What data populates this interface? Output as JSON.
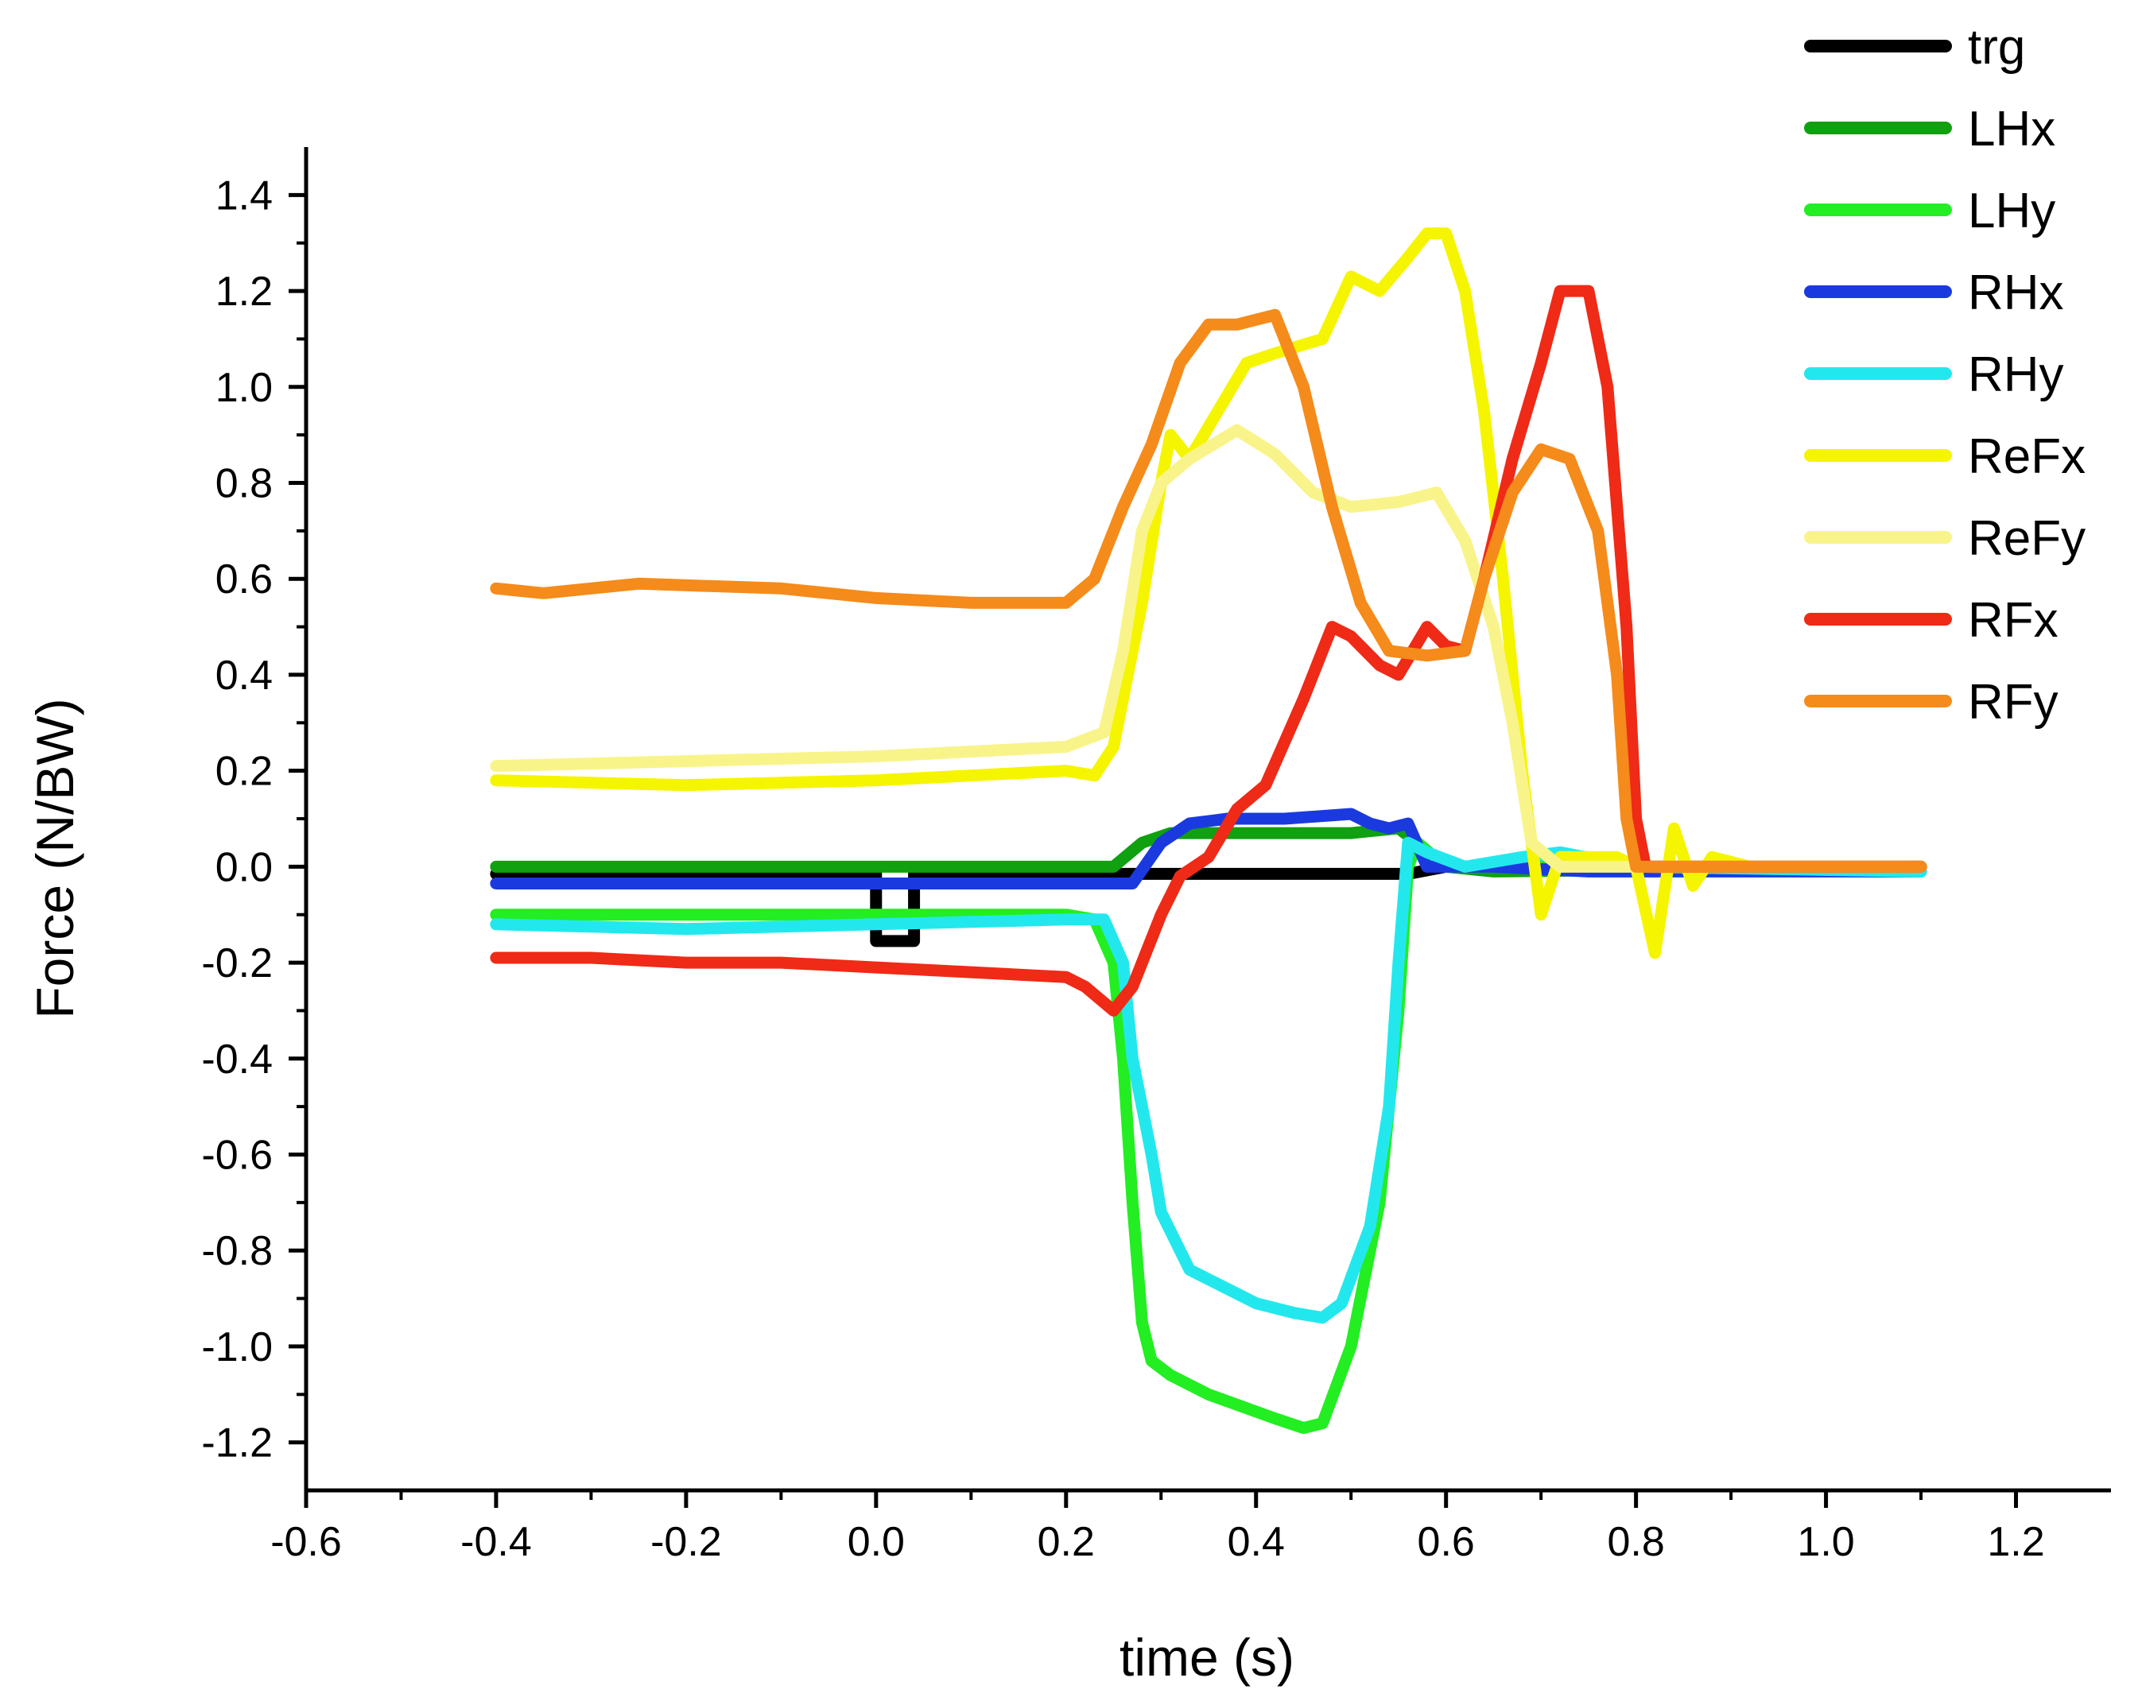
{
  "chart_data": {
    "type": "line",
    "title": "",
    "xlabel": "time (s)",
    "ylabel": "Force (N/BW)",
    "xlim": [
      -0.6,
      1.3
    ],
    "ylim": [
      -1.3,
      1.5
    ],
    "x_ticks": [
      -0.6,
      -0.4,
      -0.2,
      0.0,
      0.2,
      0.4,
      0.6,
      0.8,
      1.0,
      1.2
    ],
    "x_tick_labels": [
      "-0.6",
      "-0.4",
      "-0.2",
      "0.0",
      "0.2",
      "0.4",
      "0.6",
      "0.8",
      "1.0",
      "1.2"
    ],
    "y_ticks": [
      -1.2,
      -1.0,
      -0.8,
      -0.6,
      -0.4,
      -0.2,
      0.0,
      0.2,
      0.4,
      0.6,
      0.8,
      1.0,
      1.2,
      1.4
    ],
    "y_tick_labels": [
      "-1.2",
      "-1.0",
      "-0.8",
      "-0.6",
      "-0.4",
      "-0.2",
      "0.0",
      "0.2",
      "0.4",
      "0.6",
      "0.8",
      "1.0",
      "1.2",
      "1.4"
    ],
    "grid": false,
    "legend_position": "top-right",
    "series": [
      {
        "name": "trg",
        "color": "#000000",
        "points": [
          [
            -0.4,
            -0.015
          ],
          [
            0.0,
            -0.015
          ],
          [
            0.0,
            -0.155
          ],
          [
            0.04,
            -0.155
          ],
          [
            0.04,
            -0.015
          ],
          [
            0.56,
            -0.015
          ],
          [
            0.6,
            0.0
          ],
          [
            1.1,
            0.0
          ]
        ]
      },
      {
        "name": "LHx",
        "color": "#10a010",
        "points": [
          [
            -0.4,
            0.0
          ],
          [
            0.25,
            0.0
          ],
          [
            0.28,
            0.05
          ],
          [
            0.31,
            0.07
          ],
          [
            0.4,
            0.07
          ],
          [
            0.5,
            0.07
          ],
          [
            0.55,
            0.08
          ],
          [
            0.57,
            0.05
          ],
          [
            0.6,
            0.0
          ],
          [
            0.65,
            -0.01
          ],
          [
            1.1,
            0.0
          ]
        ]
      },
      {
        "name": "LHy",
        "color": "#22ee22",
        "points": [
          [
            -0.4,
            -0.1
          ],
          [
            0.0,
            -0.1
          ],
          [
            0.2,
            -0.1
          ],
          [
            0.23,
            -0.11
          ],
          [
            0.25,
            -0.2
          ],
          [
            0.26,
            -0.4
          ],
          [
            0.27,
            -0.7
          ],
          [
            0.28,
            -0.95
          ],
          [
            0.29,
            -1.03
          ],
          [
            0.31,
            -1.06
          ],
          [
            0.35,
            -1.1
          ],
          [
            0.42,
            -1.15
          ],
          [
            0.45,
            -1.17
          ],
          [
            0.47,
            -1.16
          ],
          [
            0.5,
            -1.0
          ],
          [
            0.53,
            -0.7
          ],
          [
            0.55,
            -0.3
          ],
          [
            0.56,
            0.0
          ],
          [
            0.57,
            0.05
          ],
          [
            0.6,
            0.0
          ],
          [
            0.7,
            0.0
          ],
          [
            1.1,
            0.0
          ]
        ]
      },
      {
        "name": "RHx",
        "color": "#1a3adf",
        "points": [
          [
            -0.4,
            -0.035
          ],
          [
            0.27,
            -0.035
          ],
          [
            0.3,
            0.05
          ],
          [
            0.33,
            0.09
          ],
          [
            0.37,
            0.1
          ],
          [
            0.43,
            0.1
          ],
          [
            0.5,
            0.11
          ],
          [
            0.52,
            0.09
          ],
          [
            0.54,
            0.08
          ],
          [
            0.56,
            0.09
          ],
          [
            0.58,
            0.0
          ],
          [
            0.65,
            0.0
          ],
          [
            0.75,
            -0.01
          ],
          [
            1.1,
            -0.01
          ]
        ]
      },
      {
        "name": "RHy",
        "color": "#22e8ee",
        "points": [
          [
            -0.4,
            -0.12
          ],
          [
            -0.2,
            -0.13
          ],
          [
            0.0,
            -0.12
          ],
          [
            0.2,
            -0.11
          ],
          [
            0.24,
            -0.11
          ],
          [
            0.26,
            -0.2
          ],
          [
            0.27,
            -0.4
          ],
          [
            0.29,
            -0.6
          ],
          [
            0.3,
            -0.72
          ],
          [
            0.33,
            -0.84
          ],
          [
            0.37,
            -0.88
          ],
          [
            0.4,
            -0.91
          ],
          [
            0.44,
            -0.93
          ],
          [
            0.47,
            -0.94
          ],
          [
            0.49,
            -0.91
          ],
          [
            0.52,
            -0.75
          ],
          [
            0.54,
            -0.5
          ],
          [
            0.55,
            -0.2
          ],
          [
            0.56,
            0.05
          ],
          [
            0.58,
            0.03
          ],
          [
            0.62,
            0.0
          ],
          [
            0.68,
            0.02
          ],
          [
            0.72,
            0.03
          ],
          [
            0.8,
            0.0
          ],
          [
            1.1,
            -0.01
          ]
        ]
      },
      {
        "name": "ReFx",
        "color": "#f5f500",
        "points": [
          [
            -0.4,
            0.18
          ],
          [
            -0.2,
            0.17
          ],
          [
            0.0,
            0.18
          ],
          [
            0.2,
            0.2
          ],
          [
            0.23,
            0.19
          ],
          [
            0.25,
            0.25
          ],
          [
            0.28,
            0.55
          ],
          [
            0.3,
            0.8
          ],
          [
            0.31,
            0.9
          ],
          [
            0.33,
            0.85
          ],
          [
            0.36,
            0.95
          ],
          [
            0.39,
            1.05
          ],
          [
            0.42,
            1.07
          ],
          [
            0.47,
            1.1
          ],
          [
            0.5,
            1.23
          ],
          [
            0.53,
            1.2
          ],
          [
            0.56,
            1.27
          ],
          [
            0.58,
            1.32
          ],
          [
            0.6,
            1.32
          ],
          [
            0.62,
            1.2
          ],
          [
            0.64,
            0.95
          ],
          [
            0.66,
            0.6
          ],
          [
            0.68,
            0.2
          ],
          [
            0.7,
            -0.1
          ],
          [
            0.72,
            0.02
          ],
          [
            0.78,
            0.02
          ],
          [
            0.8,
            0.0
          ],
          [
            0.82,
            -0.18
          ],
          [
            0.84,
            0.08
          ],
          [
            0.86,
            -0.04
          ],
          [
            0.88,
            0.02
          ],
          [
            0.92,
            0.0
          ],
          [
            1.1,
            0.0
          ]
        ]
      },
      {
        "name": "ReFy",
        "color": "#f8f48a",
        "points": [
          [
            -0.4,
            0.21
          ],
          [
            -0.2,
            0.22
          ],
          [
            0.0,
            0.23
          ],
          [
            0.2,
            0.25
          ],
          [
            0.24,
            0.28
          ],
          [
            0.26,
            0.45
          ],
          [
            0.28,
            0.7
          ],
          [
            0.3,
            0.8
          ],
          [
            0.33,
            0.85
          ],
          [
            0.38,
            0.91
          ],
          [
            0.42,
            0.86
          ],
          [
            0.46,
            0.78
          ],
          [
            0.5,
            0.75
          ],
          [
            0.55,
            0.76
          ],
          [
            0.59,
            0.78
          ],
          [
            0.62,
            0.68
          ],
          [
            0.65,
            0.5
          ],
          [
            0.67,
            0.3
          ],
          [
            0.69,
            0.05
          ],
          [
            0.72,
            0.0
          ],
          [
            1.1,
            0.0
          ]
        ]
      },
      {
        "name": "RFx",
        "color": "#ef2a16",
        "points": [
          [
            -0.4,
            -0.19
          ],
          [
            -0.3,
            -0.19
          ],
          [
            -0.2,
            -0.2
          ],
          [
            -0.1,
            -0.2
          ],
          [
            0.0,
            -0.21
          ],
          [
            0.1,
            -0.22
          ],
          [
            0.2,
            -0.23
          ],
          [
            0.22,
            -0.25
          ],
          [
            0.25,
            -0.3
          ],
          [
            0.27,
            -0.25
          ],
          [
            0.3,
            -0.1
          ],
          [
            0.32,
            -0.02
          ],
          [
            0.35,
            0.02
          ],
          [
            0.38,
            0.12
          ],
          [
            0.41,
            0.17
          ],
          [
            0.45,
            0.35
          ],
          [
            0.48,
            0.5
          ],
          [
            0.5,
            0.48
          ],
          [
            0.53,
            0.42
          ],
          [
            0.55,
            0.4
          ],
          [
            0.58,
            0.5
          ],
          [
            0.6,
            0.46
          ],
          [
            0.62,
            0.45
          ],
          [
            0.64,
            0.6
          ],
          [
            0.67,
            0.85
          ],
          [
            0.7,
            1.05
          ],
          [
            0.72,
            1.2
          ],
          [
            0.75,
            1.2
          ],
          [
            0.77,
            1.0
          ],
          [
            0.79,
            0.5
          ],
          [
            0.8,
            0.1
          ],
          [
            0.81,
            0.0
          ],
          [
            1.1,
            0.0
          ]
        ]
      },
      {
        "name": "RFy",
        "color": "#f58b1a",
        "points": [
          [
            -0.4,
            0.58
          ],
          [
            -0.35,
            0.57
          ],
          [
            -0.25,
            0.59
          ],
          [
            -0.1,
            0.58
          ],
          [
            0.0,
            0.56
          ],
          [
            0.1,
            0.55
          ],
          [
            0.2,
            0.55
          ],
          [
            0.23,
            0.6
          ],
          [
            0.26,
            0.75
          ],
          [
            0.29,
            0.88
          ],
          [
            0.32,
            1.05
          ],
          [
            0.35,
            1.13
          ],
          [
            0.38,
            1.13
          ],
          [
            0.42,
            1.15
          ],
          [
            0.45,
            1.0
          ],
          [
            0.48,
            0.75
          ],
          [
            0.51,
            0.55
          ],
          [
            0.54,
            0.45
          ],
          [
            0.58,
            0.44
          ],
          [
            0.62,
            0.45
          ],
          [
            0.64,
            0.6
          ],
          [
            0.67,
            0.78
          ],
          [
            0.7,
            0.87
          ],
          [
            0.73,
            0.85
          ],
          [
            0.76,
            0.7
          ],
          [
            0.78,
            0.4
          ],
          [
            0.79,
            0.1
          ],
          [
            0.8,
            0.0
          ],
          [
            1.1,
            0.0
          ]
        ]
      }
    ]
  }
}
